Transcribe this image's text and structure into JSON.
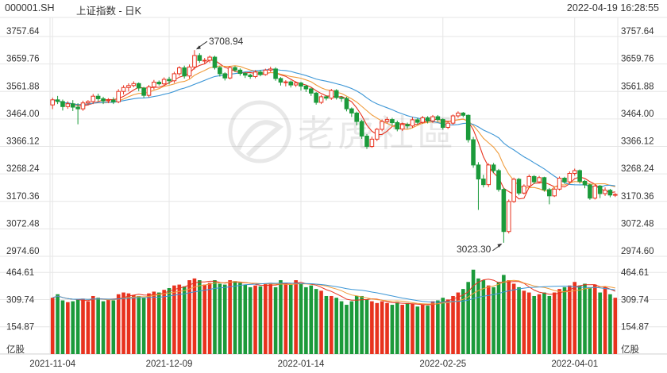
{
  "header": {
    "code": "000001.SH",
    "name": "上证指数 - 日K",
    "datetime": "2022-04-19 16:28:55"
  },
  "watermark": {
    "text": "老虎社區"
  },
  "colors": {
    "up": "#e8321e",
    "down": "#1b9a3a",
    "ma5": "#e8321e",
    "ma10": "#f09c3c",
    "ma20": "#3c96d6",
    "grid": "#e6e6e6",
    "text": "#333333"
  },
  "chart_data": {
    "type": "candlestick",
    "price_axis": {
      "ticks": [
        "3757.64",
        "3659.76",
        "3561.88",
        "3464.00",
        "3366.12",
        "3268.24",
        "3170.36",
        "3072.48",
        "2974.60"
      ],
      "range": [
        2974.6,
        3757.64
      ]
    },
    "volume_axis": {
      "ticks": [
        "464.61",
        "309.74",
        "154.87"
      ],
      "unit": "亿股",
      "range": [
        0,
        470
      ]
    },
    "date_labels": [
      "2021-11-04",
      "2021-12-09",
      "2022-01-14",
      "2022-02-25",
      "2022-04-01"
    ],
    "annotations": {
      "high": "3708.94",
      "low": "3023.30"
    },
    "candles": [
      [
        3514,
        3532,
        3499,
        3540,
        320,
        1
      ],
      [
        3532,
        3526,
        3517,
        3546,
        340,
        0
      ],
      [
        3526,
        3508,
        3494,
        3533,
        305,
        0
      ],
      [
        3508,
        3518,
        3500,
        3527,
        295,
        1
      ],
      [
        3518,
        3506,
        3492,
        3531,
        300,
        0
      ],
      [
        3506,
        3500,
        3445,
        3520,
        310,
        0
      ],
      [
        3500,
        3521,
        3493,
        3529,
        315,
        1
      ],
      [
        3521,
        3526,
        3512,
        3531,
        300,
        1
      ],
      [
        3526,
        3545,
        3517,
        3553,
        330,
        1
      ],
      [
        3545,
        3536,
        3527,
        3554,
        320,
        0
      ],
      [
        3536,
        3528,
        3517,
        3543,
        300,
        0
      ],
      [
        3528,
        3531,
        3520,
        3538,
        310,
        1
      ],
      [
        3531,
        3525,
        3517,
        3541,
        305,
        0
      ],
      [
        3525,
        3562,
        3520,
        3570,
        340,
        1
      ],
      [
        3562,
        3576,
        3551,
        3584,
        350,
        1
      ],
      [
        3576,
        3583,
        3562,
        3591,
        345,
        1
      ],
      [
        3583,
        3590,
        3577,
        3598,
        335,
        1
      ],
      [
        3590,
        3574,
        3563,
        3594,
        330,
        0
      ],
      [
        3574,
        3548,
        3540,
        3578,
        320,
        0
      ],
      [
        3548,
        3578,
        3541,
        3585,
        345,
        1
      ],
      [
        3578,
        3595,
        3569,
        3603,
        355,
        1
      ],
      [
        3595,
        3589,
        3583,
        3601,
        350,
        0
      ],
      [
        3589,
        3605,
        3583,
        3612,
        365,
        1
      ],
      [
        3605,
        3600,
        3587,
        3614,
        375,
        0
      ],
      [
        3600,
        3625,
        3592,
        3632,
        390,
        1
      ],
      [
        3625,
        3646,
        3618,
        3652,
        395,
        1
      ],
      [
        3646,
        3617,
        3608,
        3654,
        385,
        0
      ],
      [
        3617,
        3649,
        3608,
        3658,
        420,
        1
      ],
      [
        3649,
        3690,
        3640,
        3709,
        430,
        1
      ],
      [
        3690,
        3672,
        3664,
        3698,
        420,
        0
      ],
      [
        3672,
        3673,
        3660,
        3681,
        395,
        1
      ],
      [
        3673,
        3684,
        3664,
        3690,
        405,
        1
      ],
      [
        3684,
        3647,
        3640,
        3689,
        420,
        0
      ],
      [
        3647,
        3625,
        3615,
        3652,
        400,
        0
      ],
      [
        3625,
        3610,
        3601,
        3630,
        395,
        0
      ],
      [
        3610,
        3647,
        3605,
        3653,
        420,
        1
      ],
      [
        3647,
        3638,
        3631,
        3652,
        415,
        0
      ],
      [
        3638,
        3626,
        3618,
        3644,
        405,
        0
      ],
      [
        3626,
        3620,
        3610,
        3631,
        395,
        0
      ],
      [
        3620,
        3615,
        3607,
        3625,
        380,
        0
      ],
      [
        3615,
        3631,
        3609,
        3638,
        390,
        1
      ],
      [
        3631,
        3622,
        3616,
        3638,
        385,
        0
      ],
      [
        3622,
        3638,
        3618,
        3643,
        400,
        1
      ],
      [
        3638,
        3642,
        3632,
        3650,
        405,
        1
      ],
      [
        3642,
        3608,
        3600,
        3648,
        380,
        0
      ],
      [
        3608,
        3595,
        3583,
        3613,
        420,
        0
      ],
      [
        3595,
        3596,
        3580,
        3602,
        405,
        1
      ],
      [
        3596,
        3585,
        3576,
        3601,
        395,
        0
      ],
      [
        3585,
        3592,
        3578,
        3598,
        420,
        1
      ],
      [
        3592,
        3581,
        3565,
        3596,
        400,
        0
      ],
      [
        3581,
        3571,
        3560,
        3586,
        380,
        0
      ],
      [
        3571,
        3556,
        3546,
        3575,
        390,
        0
      ],
      [
        3556,
        3523,
        3515,
        3560,
        370,
        0
      ],
      [
        3523,
        3543,
        3517,
        3549,
        360,
        1
      ],
      [
        3543,
        3538,
        3530,
        3548,
        330,
        0
      ],
      [
        3538,
        3565,
        3532,
        3571,
        330,
        1
      ],
      [
        3565,
        3540,
        3533,
        3570,
        320,
        0
      ],
      [
        3540,
        3537,
        3525,
        3545,
        300,
        0
      ],
      [
        3537,
        3500,
        3491,
        3543,
        280,
        0
      ],
      [
        3500,
        3485,
        3471,
        3505,
        300,
        0
      ],
      [
        3485,
        3455,
        3441,
        3490,
        330,
        0
      ],
      [
        3455,
        3403,
        3393,
        3461,
        330,
        0
      ],
      [
        3403,
        3366,
        3357,
        3410,
        310,
        0
      ],
      [
        3366,
        3392,
        3361,
        3401,
        300,
        1
      ],
      [
        3392,
        3427,
        3385,
        3432,
        290,
        1
      ],
      [
        3427,
        3455,
        3420,
        3462,
        300,
        1
      ],
      [
        3455,
        3462,
        3448,
        3471,
        290,
        1
      ],
      [
        3462,
        3451,
        3440,
        3468,
        280,
        0
      ],
      [
        3451,
        3428,
        3420,
        3458,
        295,
        0
      ],
      [
        3428,
        3444,
        3421,
        3451,
        280,
        1
      ],
      [
        3444,
        3439,
        3430,
        3451,
        290,
        0
      ],
      [
        3439,
        3461,
        3432,
        3470,
        285,
        1
      ],
      [
        3461,
        3452,
        3445,
        3468,
        270,
        0
      ],
      [
        3452,
        3468,
        3447,
        3475,
        280,
        1
      ],
      [
        3468,
        3457,
        3448,
        3474,
        275,
        0
      ],
      [
        3457,
        3472,
        3450,
        3478,
        300,
        1
      ],
      [
        3472,
        3462,
        3455,
        3478,
        305,
        0
      ],
      [
        3462,
        3434,
        3426,
        3466,
        320,
        0
      ],
      [
        3434,
        3449,
        3428,
        3458,
        310,
        1
      ],
      [
        3449,
        3475,
        3443,
        3480,
        330,
        1
      ],
      [
        3475,
        3485,
        3468,
        3491,
        350,
        1
      ],
      [
        3485,
        3477,
        3470,
        3489,
        370,
        0
      ],
      [
        3477,
        3390,
        3380,
        3480,
        410,
        0
      ],
      [
        3390,
        3300,
        3290,
        3400,
        480,
        0
      ],
      [
        3300,
        3250,
        3140,
        3310,
        430,
        0
      ],
      [
        3250,
        3230,
        3220,
        3265,
        420,
        0
      ],
      [
        3230,
        3300,
        3221,
        3306,
        390,
        1
      ],
      [
        3300,
        3280,
        3271,
        3307,
        380,
        0
      ],
      [
        3280,
        3213,
        3205,
        3286,
        410,
        0
      ],
      [
        3213,
        3063,
        3023,
        3219,
        450,
        0
      ],
      [
        3063,
        3170,
        3056,
        3177,
        420,
        1
      ],
      [
        3170,
        3249,
        3165,
        3255,
        400,
        1
      ],
      [
        3249,
        3200,
        3192,
        3254,
        380,
        0
      ],
      [
        3200,
        3225,
        3195,
        3231,
        360,
        1
      ],
      [
        3225,
        3259,
        3219,
        3266,
        350,
        1
      ],
      [
        3259,
        3240,
        3232,
        3264,
        330,
        0
      ],
      [
        3240,
        3255,
        3234,
        3261,
        340,
        1
      ],
      [
        3255,
        3212,
        3205,
        3258,
        350,
        0
      ],
      [
        3212,
        3190,
        3160,
        3218,
        330,
        0
      ],
      [
        3190,
        3214,
        3186,
        3220,
        350,
        1
      ],
      [
        3214,
        3253,
        3209,
        3259,
        370,
        1
      ],
      [
        3253,
        3240,
        3233,
        3258,
        380,
        0
      ],
      [
        3240,
        3270,
        3235,
        3277,
        390,
        1
      ],
      [
        3270,
        3280,
        3262,
        3287,
        410,
        1
      ],
      [
        3280,
        3242,
        3234,
        3284,
        390,
        0
      ],
      [
        3242,
        3229,
        3217,
        3247,
        400,
        0
      ],
      [
        3229,
        3182,
        3176,
        3234,
        380,
        0
      ],
      [
        3182,
        3225,
        3177,
        3231,
        395,
        1
      ],
      [
        3225,
        3198,
        3182,
        3229,
        350,
        0
      ],
      [
        3198,
        3210,
        3190,
        3220,
        380,
        1
      ],
      [
        3210,
        3193,
        3185,
        3215,
        340,
        0
      ],
      [
        3193,
        3195,
        3186,
        3200,
        320,
        1
      ]
    ]
  }
}
